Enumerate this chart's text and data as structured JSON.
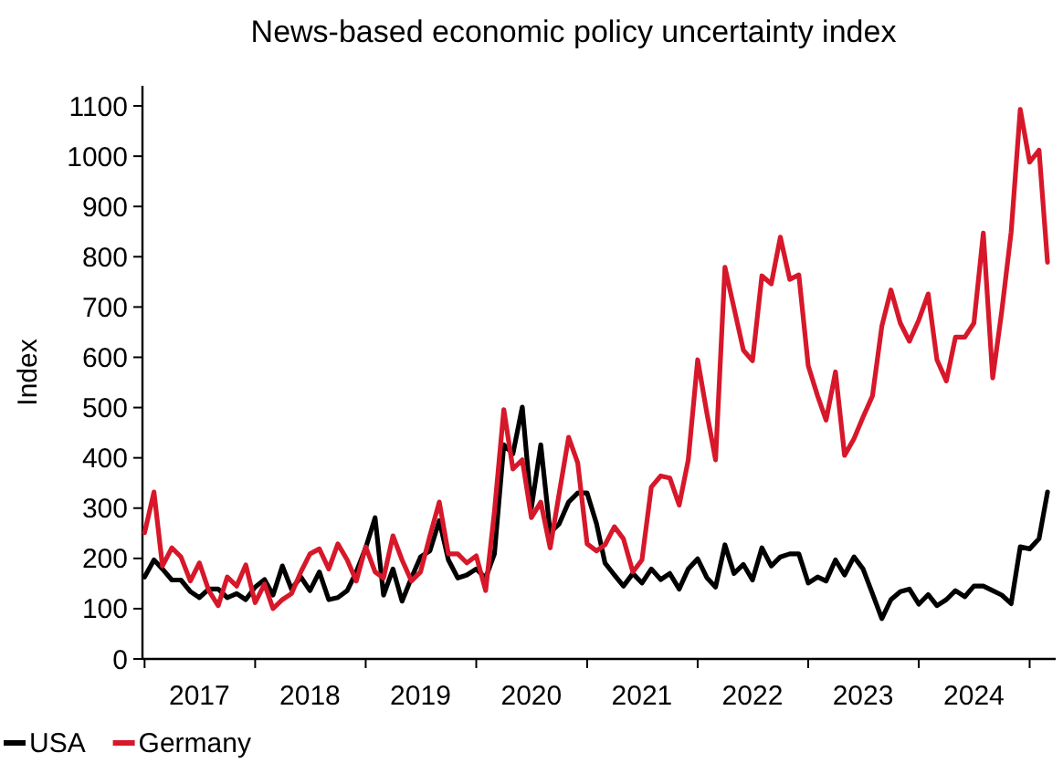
{
  "chart_data": {
    "type": "line",
    "title": "News-based economic policy uncertainty index",
    "ylabel": "Index",
    "x": [
      "2017-01",
      "2017-02",
      "2017-03",
      "2017-04",
      "2017-05",
      "2017-06",
      "2017-07",
      "2017-08",
      "2017-09",
      "2017-10",
      "2017-11",
      "2017-12",
      "2018-01",
      "2018-02",
      "2018-03",
      "2018-04",
      "2018-05",
      "2018-06",
      "2018-07",
      "2018-08",
      "2018-09",
      "2018-10",
      "2018-11",
      "2018-12",
      "2019-01",
      "2019-02",
      "2019-03",
      "2019-04",
      "2019-05",
      "2019-06",
      "2019-07",
      "2019-08",
      "2019-09",
      "2019-10",
      "2019-11",
      "2019-12",
      "2020-01",
      "2020-02",
      "2020-03",
      "2020-04",
      "2020-05",
      "2020-06",
      "2020-07",
      "2020-08",
      "2020-09",
      "2020-10",
      "2020-11",
      "2020-12",
      "2021-01",
      "2021-02",
      "2021-03",
      "2021-04",
      "2021-05",
      "2021-06",
      "2021-07",
      "2021-08",
      "2021-09",
      "2021-10",
      "2021-11",
      "2021-12",
      "2022-01",
      "2022-02",
      "2022-03",
      "2022-04",
      "2022-05",
      "2022-06",
      "2022-07",
      "2022-08",
      "2022-09",
      "2022-10",
      "2022-11",
      "2022-12",
      "2023-01",
      "2023-02",
      "2023-03",
      "2023-04",
      "2023-05",
      "2023-06",
      "2023-07",
      "2023-08",
      "2023-09",
      "2023-10",
      "2023-11",
      "2023-12",
      "2024-01",
      "2024-02",
      "2024-03",
      "2024-04",
      "2024-05",
      "2024-06",
      "2024-07",
      "2024-08",
      "2024-09",
      "2024-10",
      "2024-11",
      "2024-12",
      "2025-01",
      "2025-02",
      "2025-03"
    ],
    "series": [
      {
        "name": "USA",
        "color": "#000000",
        "values": [
          163,
          197,
          179,
          157,
          157,
          134,
          122,
          139,
          139,
          122,
          130,
          118,
          143,
          158,
          127,
          185,
          139,
          163,
          136,
          173,
          118,
          122,
          136,
          173,
          221,
          281,
          127,
          179,
          115,
          161,
          203,
          215,
          275,
          197,
          161,
          167,
          179,
          161,
          209,
          426,
          408,
          501,
          300,
          426,
          251,
          269,
          312,
          330,
          330,
          269,
          191,
          167,
          145,
          170,
          151,
          179,
          158,
          170,
          139,
          179,
          199,
          161,
          143,
          227,
          170,
          188,
          157,
          221,
          185,
          203,
          209,
          209,
          151,
          163,
          155,
          197,
          167,
          203,
          179,
          130,
          80,
          118,
          134,
          139,
          109,
          128,
          106,
          118,
          136,
          124,
          145,
          145,
          136,
          127,
          110,
          223,
          219,
          239,
          332
        ]
      },
      {
        "name": "Germany",
        "color": "#d7182a",
        "values": [
          251,
          332,
          185,
          221,
          203,
          155,
          191,
          136,
          106,
          163,
          145,
          187,
          112,
          149,
          100,
          118,
          130,
          173,
          209,
          219,
          179,
          229,
          197,
          155,
          223,
          173,
          161,
          245,
          197,
          155,
          173,
          245,
          312,
          209,
          209,
          191,
          205,
          136,
          293,
          496,
          378,
          396,
          281,
          312,
          221,
          330,
          441,
          390,
          229,
          215,
          227,
          263,
          239,
          173,
          197,
          342,
          364,
          360,
          306,
          396,
          595,
          487,
          396,
          779,
          698,
          614,
          593,
          762,
          746,
          839,
          755,
          764,
          583,
          523,
          475,
          571,
          405,
          438,
          481,
          523,
          662,
          734,
          668,
          632,
          674,
          726,
          595,
          553,
          640,
          640,
          668,
          847,
          559,
          692,
          849,
          1093,
          988,
          1012,
          789
        ]
      }
    ],
    "ylim": [
      0,
      1140
    ],
    "yticks": [
      0,
      100,
      200,
      300,
      400,
      500,
      600,
      700,
      800,
      900,
      1000,
      1100
    ],
    "xlim": [
      "2016-12-25",
      "2025-03-28"
    ],
    "xticks": [
      {
        "value": "2017-01-01",
        "label": null
      },
      {
        "value": "2017-07-01",
        "label": "2017"
      },
      {
        "value": "2018-01-01",
        "label": null
      },
      {
        "value": "2018-07-01",
        "label": "2018"
      },
      {
        "value": "2019-01-01",
        "label": null
      },
      {
        "value": "2019-07-01",
        "label": "2019"
      },
      {
        "value": "2020-01-01",
        "label": null
      },
      {
        "value": "2020-07-01",
        "label": "2020"
      },
      {
        "value": "2021-01-01",
        "label": null
      },
      {
        "value": "2021-07-01",
        "label": "2021"
      },
      {
        "value": "2022-01-01",
        "label": null
      },
      {
        "value": "2022-07-01",
        "label": "2022"
      },
      {
        "value": "2023-01-01",
        "label": null
      },
      {
        "value": "2023-07-01",
        "label": "2023"
      },
      {
        "value": "2024-01-01",
        "label": null
      },
      {
        "value": "2024-07-01",
        "label": "2024"
      },
      {
        "value": "2025-01-01",
        "label": null
      }
    ],
    "legend": "bottom left",
    "grid": false,
    "line_style": "solid",
    "marker": "none"
  }
}
